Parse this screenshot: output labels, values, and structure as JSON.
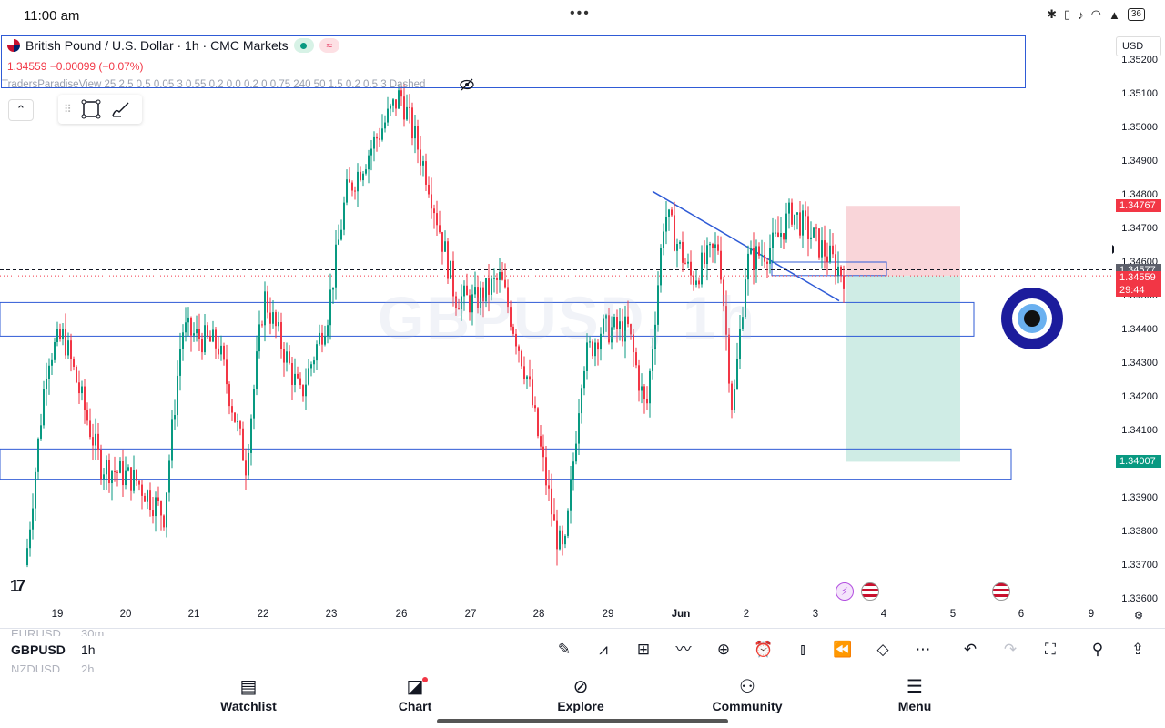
{
  "status_bar": {
    "time": "11:00 am",
    "dots": "•••",
    "battery": "36"
  },
  "header": {
    "symbol_title": "British Pound / U.S. Dollar · 1h · CMC Markets",
    "pink_pill": "≈",
    "price_line": "1.34559  −0.00099 (−0.07%)",
    "indicator": "TradersParadiseView 25 2.5 0.5 0.05 3 0.55 0.2 0.0 0.2 0 0.75 240 50 1.5 0.2 0.5 3 Dashed",
    "currency": "USD"
  },
  "watermark": "GBPUSD, 1h",
  "axis": {
    "price_ticks": [
      "1.35200",
      "1.35100",
      "1.35000",
      "1.34900",
      "1.34800",
      "1.34700",
      "1.34600",
      "1.34500",
      "1.34400",
      "1.34300",
      "1.34200",
      "1.34100",
      "1.34000",
      "1.33900",
      "1.33800",
      "1.33700",
      "1.33600"
    ],
    "time_ticks": [
      "19",
      "20",
      "21",
      "22",
      "23",
      "26",
      "27",
      "28",
      "29",
      "Jun",
      "2",
      "3",
      "4",
      "5",
      "6",
      "9"
    ],
    "badges": {
      "take_profit_red": "1.34767",
      "line_price": "1.34577",
      "current_price": "1.34559",
      "countdown": "29:44",
      "stop_green": "1.34007"
    }
  },
  "colors": {
    "up": "#089981",
    "down": "#f23645",
    "zone_blue": "#2f5bd6",
    "risk_red": "#f7c7cc",
    "reward_green": "#bfe6dc"
  },
  "logo": "17",
  "watchlist": {
    "prev_symbol": "EURUSD",
    "prev_tf": "30m",
    "current_symbol": "GBPUSD",
    "current_tf": "1h",
    "next_symbol": "NZDUSD",
    "next_tf": "2h"
  },
  "toolbar_icons": [
    "pencil-icon",
    "chart-type-icon",
    "grid-icon",
    "indicator-icon",
    "add-icon",
    "alert-icon",
    "candles-icon",
    "replay-icon",
    "layers-icon",
    "more-icon",
    "undo-icon",
    "redo-icon",
    "fullscreen-icon",
    "idea-icon",
    "share-icon"
  ],
  "nav": {
    "watchlist": "Watchlist",
    "chart": "Chart",
    "explore": "Explore",
    "community": "Community",
    "menu": "Menu"
  }
}
